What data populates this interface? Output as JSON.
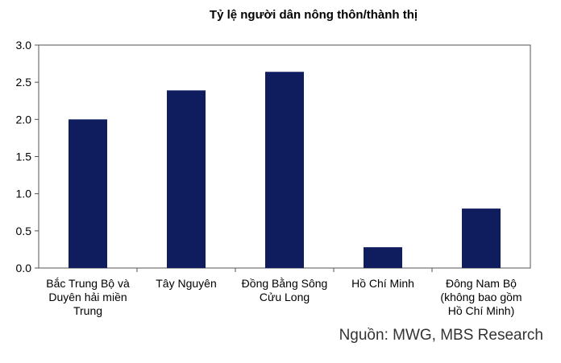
{
  "chart_data": {
    "type": "bar",
    "title": "Tỷ lệ người dân nông thôn/thành thị",
    "categories": [
      [
        "Bắc Trung Bộ và",
        "Duyên hải miền",
        "Trung"
      ],
      [
        "Tây Nguyên"
      ],
      [
        "Đồng Bằng Sông",
        "Cửu Long"
      ],
      [
        "Hồ Chí Minh"
      ],
      [
        "Đông Nam Bộ",
        "(không bao gồm",
        "Hồ Chí Minh)"
      ]
    ],
    "values": [
      2.0,
      2.39,
      2.64,
      0.28,
      0.8
    ],
    "ylim": [
      0,
      3.0
    ],
    "yticks": [
      "0.0",
      "0.5",
      "1.0",
      "1.5",
      "2.0",
      "2.5",
      "3.0"
    ],
    "grid": false,
    "legend": "none",
    "bar_color": "#0f1c5e",
    "xlabel": "",
    "ylabel": ""
  },
  "source": "Nguồn: MWG, MBS Research"
}
